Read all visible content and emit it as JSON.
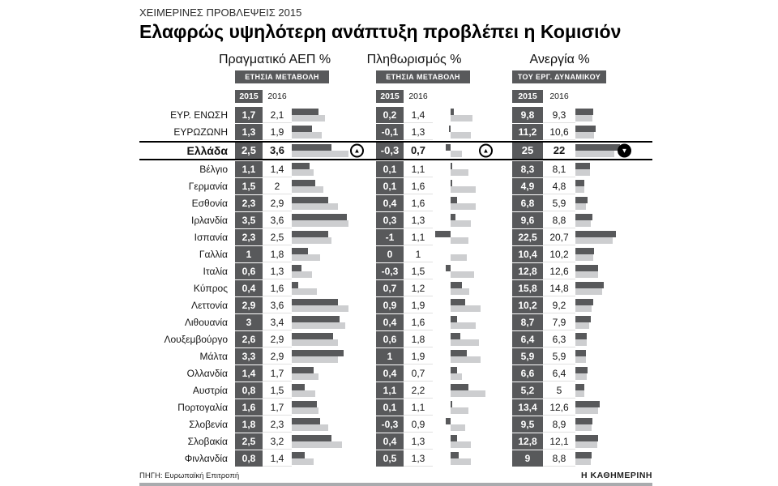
{
  "kicker": "ΧΕΙΜΕΡΙΝΕΣ ΠΡΟΒΛΕΨΕΙΣ 2015",
  "title": "Ελαφρώς υψηλότερη ανάπτυξη προβλέπει η Κομισιόν",
  "source": "ΠΗΓΗ: Ευρωπαϊκή Επιτροπή",
  "brand": "Η ΚΑΘΗΜΕΡΙΝΗ",
  "colors": {
    "dark": "#58595b",
    "light_bar": "#cdced0",
    "highlight_border": "#000000"
  },
  "groups": [
    {
      "title": "Πραγματικό ΑΕΠ %",
      "subtitle": "ΕΤΗΣΙΑ ΜΕΤΑΒΟΛΗ",
      "years": [
        "2015",
        "2016"
      ]
    },
    {
      "title": "Πληθωρισμός %",
      "subtitle": "ΕΤΗΣΙΑ ΜΕΤΑΒΟΛΗ",
      "years": [
        "2015",
        "2016"
      ]
    },
    {
      "title": "Ανεργία %",
      "subtitle": "ΤΟΥ ΕΡΓ. ΔΥΝΑΜΙΚΟΥ",
      "years": [
        "2015",
        "2016"
      ]
    }
  ],
  "greece_trends": {
    "gdp": "up",
    "inflation": "up",
    "unemployment": "down"
  },
  "rows": [
    {
      "country": "ΕΥΡ. ΕΝΩΣΗ",
      "gdp": [
        "1,7",
        "2,1"
      ],
      "inflation": [
        "0,2",
        "1,4"
      ],
      "unemployment": [
        "9,8",
        "9,3"
      ]
    },
    {
      "country": "ΕΥΡΩΖΩΝΗ",
      "gdp": [
        "1,3",
        "1,9"
      ],
      "inflation": [
        "-0,1",
        "1,3"
      ],
      "unemployment": [
        "11,2",
        "10,6"
      ]
    },
    {
      "country": "Ελλάδα",
      "highlight": true,
      "gdp": [
        "2,5",
        "3,6"
      ],
      "inflation": [
        "-0,3",
        "0,7"
      ],
      "unemployment": [
        "25",
        "22"
      ]
    },
    {
      "country": "Βέλγιο",
      "gdp": [
        "1,1",
        "1,4"
      ],
      "inflation": [
        "0,1",
        "1,1"
      ],
      "unemployment": [
        "8,3",
        "8,1"
      ]
    },
    {
      "country": "Γερμανία",
      "gdp": [
        "1,5",
        "2"
      ],
      "inflation": [
        "0,1",
        "1,6"
      ],
      "unemployment": [
        "4,9",
        "4,8"
      ]
    },
    {
      "country": "Εσθονία",
      "gdp": [
        "2,3",
        "2,9"
      ],
      "inflation": [
        "0,4",
        "1,6"
      ],
      "unemployment": [
        "6,8",
        "5,9"
      ]
    },
    {
      "country": "Ιρλανδία",
      "gdp": [
        "3,5",
        "3,6"
      ],
      "inflation": [
        "0,3",
        "1,3"
      ],
      "unemployment": [
        "9,6",
        "8,8"
      ]
    },
    {
      "country": "Ισπανία",
      "gdp": [
        "2,3",
        "2,5"
      ],
      "inflation": [
        "-1",
        "1,1"
      ],
      "unemployment": [
        "22,5",
        "20,7"
      ]
    },
    {
      "country": "Γαλλία",
      "gdp": [
        "1",
        "1,8"
      ],
      "inflation": [
        "0",
        "1"
      ],
      "unemployment": [
        "10,4",
        "10,2"
      ]
    },
    {
      "country": "Ιταλία",
      "gdp": [
        "0,6",
        "1,3"
      ],
      "inflation": [
        "-0,3",
        "1,5"
      ],
      "unemployment": [
        "12,8",
        "12,6"
      ]
    },
    {
      "country": "Κύπρος",
      "gdp": [
        "0,4",
        "1,6"
      ],
      "inflation": [
        "0,7",
        "1,2"
      ],
      "unemployment": [
        "15,8",
        "14,8"
      ]
    },
    {
      "country": "Λεττονία",
      "gdp": [
        "2,9",
        "3,6"
      ],
      "inflation": [
        "0,9",
        "1,9"
      ],
      "unemployment": [
        "10,2",
        "9,2"
      ]
    },
    {
      "country": "Λιθουανία",
      "gdp": [
        "3",
        "3,4"
      ],
      "inflation": [
        "0,4",
        "1,6"
      ],
      "unemployment": [
        "8,7",
        "7,9"
      ]
    },
    {
      "country": "Λουξεμβούργο",
      "gdp": [
        "2,6",
        "2,9"
      ],
      "inflation": [
        "0,6",
        "1,8"
      ],
      "unemployment": [
        "6,4",
        "6,3"
      ]
    },
    {
      "country": "Μάλτα",
      "gdp": [
        "3,3",
        "2,9"
      ],
      "inflation": [
        "1",
        "1,9"
      ],
      "unemployment": [
        "5,9",
        "5,9"
      ]
    },
    {
      "country": "Ολλανδία",
      "gdp": [
        "1,4",
        "1,7"
      ],
      "inflation": [
        "0,4",
        "0,7"
      ],
      "unemployment": [
        "6,6",
        "6,4"
      ]
    },
    {
      "country": "Αυστρία",
      "gdp": [
        "0,8",
        "1,5"
      ],
      "inflation": [
        "1,1",
        "2,2"
      ],
      "unemployment": [
        "5,2",
        "5"
      ]
    },
    {
      "country": "Πορτογαλία",
      "gdp": [
        "1,6",
        "1,7"
      ],
      "inflation": [
        "0,1",
        "1,1"
      ],
      "unemployment": [
        "13,4",
        "12,6"
      ]
    },
    {
      "country": "Σλοβενία",
      "gdp": [
        "1,8",
        "2,3"
      ],
      "inflation": [
        "-0,3",
        "0,9"
      ],
      "unemployment": [
        "9,5",
        "8,9"
      ]
    },
    {
      "country": "Σλοβακία",
      "gdp": [
        "2,5",
        "3,2"
      ],
      "inflation": [
        "0,4",
        "1,3"
      ],
      "unemployment": [
        "12,8",
        "12,1"
      ]
    },
    {
      "country": "Φινλανδία",
      "gdp": [
        "0,8",
        "1,4"
      ],
      "inflation": [
        "0,5",
        "1,3"
      ],
      "unemployment": [
        "9",
        "8,8"
      ]
    }
  ],
  "chart_data": {
    "type": "bar",
    "title": "Ελαφρώς υψηλότερη ανάπτυξη προβλέπει η Κομισιόν",
    "subtitle": "ΧΕΙΜΕΡΙΝΕΣ ΠΡΟΒΛΕΨΕΙΣ 2015",
    "categories": [
      "ΕΥΡ. ΕΝΩΣΗ",
      "ΕΥΡΩΖΩΝΗ",
      "Ελλάδα",
      "Βέλγιο",
      "Γερμανία",
      "Εσθονία",
      "Ιρλανδία",
      "Ισπανία",
      "Γαλλία",
      "Ιταλία",
      "Κύπρος",
      "Λεττονία",
      "Λιθουανία",
      "Λουξεμβούργο",
      "Μάλτα",
      "Ολλανδία",
      "Αυστρία",
      "Πορτογαλία",
      "Σλοβενία",
      "Σλοβακία",
      "Φινλανδία"
    ],
    "group_titles": [
      "Πραγματικό ΑΕΠ % (ΕΤΗΣΙΑ ΜΕΤΑΒΟΛΗ)",
      "Πληθωρισμός % (ΕΤΗΣΙΑ ΜΕΤΑΒΟΛΗ)",
      "Ανεργία % (ΤΟΥ ΕΡΓ. ΔΥΝΑΜΙΚΟΥ)"
    ],
    "series": [
      {
        "name": "Πραγματικό ΑΕΠ % 2015",
        "values": [
          1.7,
          1.3,
          2.5,
          1.1,
          1.5,
          2.3,
          3.5,
          2.3,
          1,
          0.6,
          0.4,
          2.9,
          3,
          2.6,
          3.3,
          1.4,
          0.8,
          1.6,
          1.8,
          2.5,
          0.8
        ]
      },
      {
        "name": "Πραγματικό ΑΕΠ % 2016",
        "values": [
          2.1,
          1.9,
          3.6,
          1.4,
          2,
          2.9,
          3.6,
          2.5,
          1.8,
          1.3,
          1.6,
          3.6,
          3.4,
          2.9,
          2.9,
          1.7,
          1.5,
          1.7,
          2.3,
          3.2,
          1.4
        ]
      },
      {
        "name": "Πληθωρισμός % 2015",
        "values": [
          0.2,
          -0.1,
          -0.3,
          0.1,
          0.1,
          0.4,
          0.3,
          -1,
          0,
          -0.3,
          0.7,
          0.9,
          0.4,
          0.6,
          1,
          0.4,
          1.1,
          0.1,
          -0.3,
          0.4,
          0.5
        ]
      },
      {
        "name": "Πληθωρισμός % 2016",
        "values": [
          1.4,
          1.3,
          0.7,
          1.1,
          1.6,
          1.6,
          1.3,
          1.1,
          1,
          1.5,
          1.2,
          1.9,
          1.6,
          1.8,
          1.9,
          0.7,
          2.2,
          1.1,
          0.9,
          1.3,
          1.3
        ]
      },
      {
        "name": "Ανεργία % 2015",
        "values": [
          9.8,
          11.2,
          25,
          8.3,
          4.9,
          6.8,
          9.6,
          22.5,
          10.4,
          12.8,
          15.8,
          10.2,
          8.7,
          6.4,
          5.9,
          6.6,
          5.2,
          13.4,
          9.5,
          12.8,
          9
        ]
      },
      {
        "name": "Ανεργία % 2016",
        "values": [
          9.3,
          10.6,
          22,
          8.1,
          4.8,
          5.9,
          8.8,
          20.7,
          10.2,
          12.6,
          14.8,
          9.2,
          7.9,
          6.3,
          5.9,
          6.4,
          5,
          12.6,
          8.9,
          12.1,
          8.8
        ]
      }
    ],
    "highlight_category": "Ελλάδα",
    "grid": false,
    "legend_position": "none",
    "orientation": "horizontal"
  }
}
